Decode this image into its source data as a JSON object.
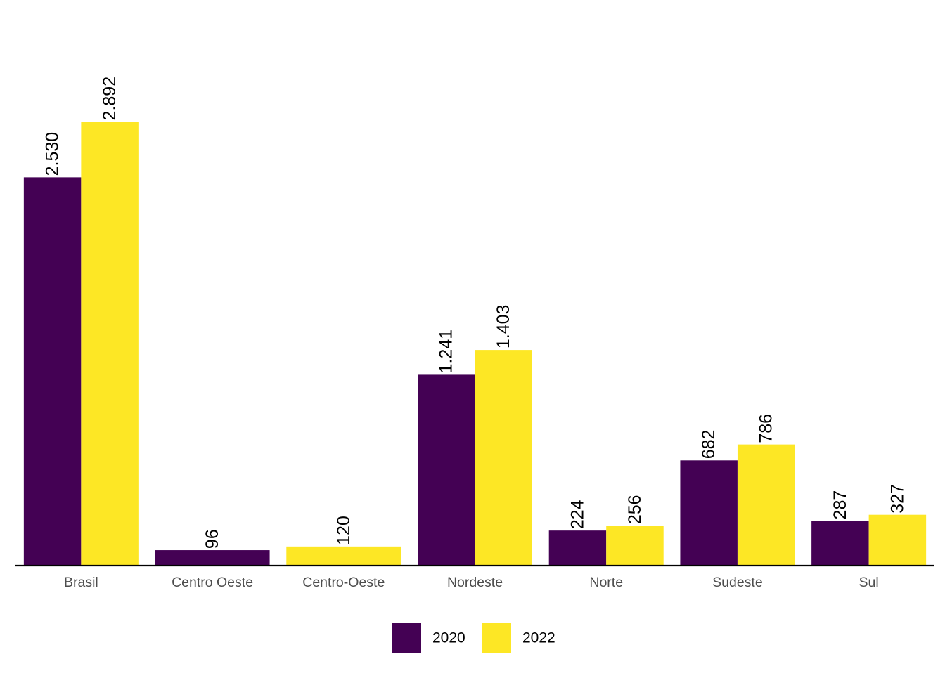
{
  "chart_data": {
    "type": "bar",
    "title": "",
    "xlabel": "",
    "ylabel": "",
    "categories": [
      "Brasil",
      "Centro Oeste",
      "Centro-Oeste",
      "Nordeste",
      "Norte",
      "Sudeste",
      "Sul"
    ],
    "series": [
      {
        "name": "2020",
        "color": "#440154",
        "values": [
          2530,
          96,
          null,
          1241,
          224,
          682,
          287
        ],
        "labels": [
          "2.530",
          "96",
          null,
          "1.241",
          "224",
          "682",
          "287"
        ]
      },
      {
        "name": "2022",
        "color": "#FDE725",
        "values": [
          2892,
          null,
          120,
          1403,
          256,
          786,
          327
        ],
        "labels": [
          "2.892",
          null,
          "120",
          "1.403",
          "256",
          "786",
          "327"
        ]
      }
    ],
    "ylim": [
      0,
      3000
    ],
    "grid": false,
    "y_axis_visible": false,
    "data_labels": "rotated-vertical",
    "legend": {
      "position": "bottom",
      "entries": [
        "2020",
        "2022"
      ]
    }
  }
}
